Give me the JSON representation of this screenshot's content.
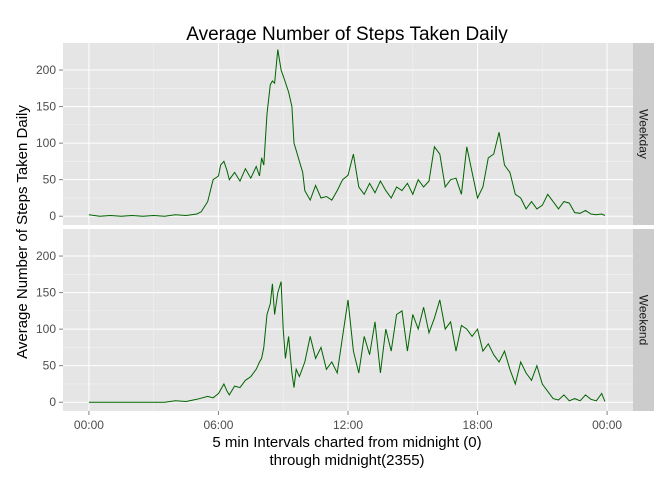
{
  "chart_data": {
    "type": "line",
    "title": "Average Number of Steps Taken Daily",
    "xlabel": [
      "5 min Intervals charted from midnight (0)",
      "through midnight(2355)"
    ],
    "ylabel": "Average Number of Steps Taken Daily",
    "x_tick_labels": [
      "00:00",
      "06:00",
      "12:00",
      "18:00",
      "00:00"
    ],
    "x_ticks_hours": [
      0,
      6,
      12,
      18,
      24
    ],
    "xlim_hours": [
      -1.2,
      25.2
    ],
    "y_ticks": [
      0,
      50,
      100,
      150,
      200
    ],
    "ylim": [
      -12,
      237
    ],
    "grid": true,
    "line_color": "#006400",
    "panel_background": "#e5e5e5",
    "strip_background": "#cccccc",
    "panels": [
      {
        "label": "Weekday",
        "x_hours": [
          0.0,
          0.5,
          1.0,
          1.5,
          2.0,
          2.5,
          3.0,
          3.5,
          4.0,
          4.5,
          5.0,
          5.2,
          5.5,
          5.75,
          6.0,
          6.1,
          6.25,
          6.4,
          6.5,
          6.75,
          7.0,
          7.25,
          7.5,
          7.75,
          7.9,
          8.0,
          8.1,
          8.25,
          8.4,
          8.5,
          8.6,
          8.75,
          8.9,
          9.0,
          9.1,
          9.25,
          9.4,
          9.5,
          9.6,
          9.75,
          9.9,
          10.0,
          10.25,
          10.5,
          10.75,
          11.0,
          11.25,
          11.5,
          11.75,
          12.0,
          12.25,
          12.5,
          12.75,
          13.0,
          13.25,
          13.5,
          13.75,
          14.0,
          14.25,
          14.5,
          14.75,
          15.0,
          15.25,
          15.5,
          15.75,
          16.0,
          16.25,
          16.5,
          16.75,
          17.0,
          17.25,
          17.5,
          17.75,
          18.0,
          18.25,
          18.5,
          18.75,
          19.0,
          19.25,
          19.5,
          19.75,
          20.0,
          20.25,
          20.5,
          20.75,
          21.0,
          21.25,
          21.5,
          21.75,
          22.0,
          22.25,
          22.5,
          22.75,
          23.0,
          23.25,
          23.5,
          23.75,
          23.9
        ],
        "y": [
          2,
          0,
          1,
          0,
          1,
          0,
          1,
          0,
          2,
          1,
          3,
          6,
          20,
          50,
          55,
          70,
          75,
          62,
          50,
          60,
          48,
          65,
          52,
          68,
          55,
          80,
          70,
          140,
          180,
          185,
          182,
          228,
          200,
          192,
          183,
          170,
          150,
          100,
          90,
          75,
          60,
          35,
          22,
          42,
          25,
          27,
          22,
          35,
          50,
          56,
          85,
          40,
          30,
          45,
          32,
          48,
          35,
          25,
          40,
          35,
          45,
          30,
          50,
          40,
          48,
          95,
          85,
          40,
          50,
          52,
          30,
          95,
          60,
          25,
          40,
          80,
          85,
          115,
          70,
          60,
          30,
          25,
          10,
          20,
          10,
          15,
          30,
          20,
          10,
          20,
          18,
          5,
          4,
          8,
          3,
          2,
          3,
          1
        ]
      },
      {
        "label": "Weekend",
        "x_hours": [
          0.0,
          0.5,
          1.0,
          1.5,
          2.0,
          2.5,
          3.0,
          3.5,
          4.0,
          4.5,
          5.0,
          5.5,
          5.75,
          6.0,
          6.25,
          6.4,
          6.5,
          6.75,
          7.0,
          7.25,
          7.5,
          7.75,
          7.9,
          8.0,
          8.1,
          8.25,
          8.4,
          8.5,
          8.6,
          8.75,
          8.9,
          9.0,
          9.1,
          9.25,
          9.4,
          9.5,
          9.6,
          9.75,
          10.0,
          10.25,
          10.5,
          10.75,
          11.0,
          11.25,
          11.5,
          11.75,
          12.0,
          12.25,
          12.5,
          12.75,
          13.0,
          13.25,
          13.5,
          13.75,
          14.0,
          14.25,
          14.5,
          14.75,
          15.0,
          15.25,
          15.5,
          15.75,
          16.0,
          16.25,
          16.5,
          16.75,
          17.0,
          17.25,
          17.5,
          17.75,
          18.0,
          18.25,
          18.5,
          18.75,
          19.0,
          19.25,
          19.5,
          19.75,
          20.0,
          20.25,
          20.5,
          20.75,
          21.0,
          21.25,
          21.5,
          21.75,
          22.0,
          22.25,
          22.5,
          22.75,
          23.0,
          23.25,
          23.5,
          23.75,
          23.9
        ],
        "y": [
          0,
          0,
          0,
          0,
          0,
          0,
          0,
          0,
          2,
          1,
          4,
          8,
          6,
          12,
          25,
          15,
          10,
          22,
          20,
          30,
          35,
          45,
          55,
          60,
          75,
          120,
          135,
          162,
          120,
          150,
          165,
          100,
          60,
          90,
          40,
          20,
          45,
          35,
          55,
          90,
          60,
          75,
          45,
          55,
          40,
          90,
          140,
          70,
          40,
          90,
          65,
          110,
          40,
          100,
          70,
          120,
          125,
          70,
          120,
          100,
          130,
          95,
          115,
          140,
          100,
          110,
          70,
          105,
          100,
          90,
          100,
          70,
          80,
          65,
          55,
          70,
          45,
          25,
          55,
          40,
          30,
          50,
          25,
          15,
          5,
          3,
          10,
          2,
          5,
          2,
          10,
          4,
          2,
          12,
          1
        ]
      }
    ]
  }
}
